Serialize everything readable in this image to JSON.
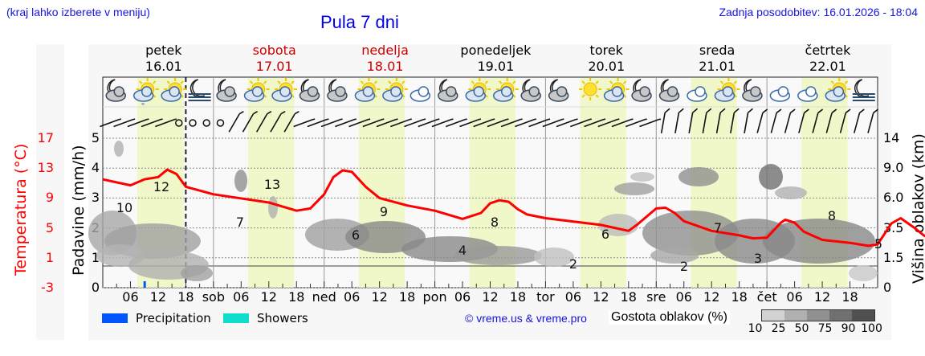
{
  "header": {
    "location_hint": "(kraj lahko izberete v meniju)",
    "title": "Pula 7 dni",
    "last_update": "Zadnja posodobitev: 16.01.2026 - 18:04"
  },
  "days": [
    {
      "name": "petek",
      "date": "16.01",
      "weekend": false
    },
    {
      "name": "sobota",
      "date": "17.01",
      "weekend": true
    },
    {
      "name": "nedelja",
      "date": "18.01",
      "weekend": true
    },
    {
      "name": "ponedeljek",
      "date": "19.01",
      "weekend": false
    },
    {
      "name": "torek",
      "date": "20.01",
      "weekend": false
    },
    {
      "name": "sreda",
      "date": "21.01",
      "weekend": false
    },
    {
      "name": "četrtek",
      "date": "22.01",
      "weekend": false
    }
  ],
  "axes": {
    "left_temp_title": "Temperatura (°C)",
    "left_precip_title": "Padavine (mm/h)",
    "right_title": "Višina oblakov (km)",
    "temp_ticks": [
      "17",
      "13",
      "9",
      "5",
      "1",
      "-3"
    ],
    "precip_ticks": [
      "5",
      "4",
      "3",
      "2",
      "1",
      "0"
    ],
    "cloud_height_ticks": [
      "14",
      "9.0",
      "6.0",
      "3.5",
      "1.5",
      "0"
    ],
    "x_ticks": [
      "06",
      "12",
      "18",
      "sob",
      "06",
      "12",
      "18",
      "ned",
      "06",
      "12",
      "18",
      "pon",
      "06",
      "12",
      "18",
      "tor",
      "06",
      "12",
      "18",
      "sre",
      "06",
      "12",
      "18",
      "čet",
      "06",
      "12",
      "18"
    ]
  },
  "legend": {
    "precipitation": "Precipitation",
    "showers": "Showers",
    "precipitation_color": "#0055ff",
    "showers_color": "#11ddcc",
    "copyright": "© vreme.us & vreme.pro",
    "cloud_density_label": "Gostota oblakov (%)",
    "cloud_density_scale": [
      "10",
      "25",
      "50",
      "75",
      "90",
      "100"
    ],
    "cloud_density_colors": [
      "#d2d2d2",
      "#b0b0b0",
      "#909090",
      "#707070",
      "#505050"
    ]
  },
  "icons": [
    "moon-cloud",
    "sun-cloud-rain",
    "sun-cloud",
    "moon-fog",
    "moon-cloud",
    "sun-cloud",
    "sun-cloud",
    "moon-cloud",
    "moon-cloud",
    "sun-cloud",
    "sun-cloud",
    "cloudy",
    "moon-cloud",
    "sun-cloud",
    "sun-cloud",
    "moon-cloud",
    "moon-cloud",
    "sun",
    "sun-cloud",
    "moon-cloud",
    "moon-cloud",
    "cloudy",
    "sun-cloud",
    "moon-cloud",
    "cloudy",
    "cloudy",
    "sun-cloud",
    "moon-fog"
  ],
  "chart_data": {
    "type": "line",
    "title": "Pula 7 dni",
    "xlabel": "",
    "ylabel": "Temperatura (°C)",
    "ylim": [
      -3,
      17
    ],
    "secondary_axes": {
      "precipitation_mm_h": [
        0,
        5
      ],
      "cloud_height_km": [
        "0",
        "1.5",
        "3.5",
        "6.0",
        "9.0",
        "14"
      ]
    },
    "grid": true,
    "legend_position": "bottom",
    "series": [
      {
        "name": "Temperatura (°C)",
        "color": "#ff0000",
        "labeled_extremes": [
          {
            "time": "16.01 03",
            "value": 10
          },
          {
            "time": "16.01 13",
            "value": 12
          },
          {
            "time": "17.01 06",
            "value": 7
          },
          {
            "time": "17.01 13",
            "value": 13
          },
          {
            "time": "18.01 06",
            "value": 6
          },
          {
            "time": "18.01 13",
            "value": 9
          },
          {
            "time": "19.01 05",
            "value": 4
          },
          {
            "time": "19.01 13",
            "value": 8
          },
          {
            "time": "20.01 05",
            "value": 2
          },
          {
            "time": "20.01 13",
            "value": 6
          },
          {
            "time": "21.01 06",
            "value": 2
          },
          {
            "time": "21.01 13",
            "value": 7
          },
          {
            "time": "22.01 03",
            "value": 3
          },
          {
            "time": "22.01 14",
            "value": 8
          },
          {
            "time": "22.01 24",
            "value": 5
          }
        ],
        "hourly_points": [
          [
            0,
            11.5
          ],
          [
            6,
            10.7
          ],
          [
            9,
            11.5
          ],
          [
            12,
            11.8
          ],
          [
            14,
            12.8
          ],
          [
            16,
            12.2
          ],
          [
            18,
            10.5
          ],
          [
            24,
            9.5
          ],
          [
            36,
            8.4
          ],
          [
            42,
            7.3
          ],
          [
            45,
            7.6
          ],
          [
            48,
            9.5
          ],
          [
            50,
            11.8
          ],
          [
            52,
            12.7
          ],
          [
            54,
            12.5
          ],
          [
            57,
            10.5
          ],
          [
            60,
            9
          ],
          [
            66,
            8.0
          ],
          [
            72,
            7.3
          ],
          [
            78,
            6.2
          ],
          [
            82,
            7.0
          ],
          [
            84,
            8.3
          ],
          [
            86,
            8.7
          ],
          [
            88,
            8.5
          ],
          [
            90,
            7.5
          ],
          [
            92,
            6.8
          ],
          [
            96,
            6.3
          ],
          [
            108,
            5.4
          ],
          [
            114,
            4.6
          ],
          [
            116,
            5.5
          ],
          [
            120,
            7.6
          ],
          [
            122,
            7.7
          ],
          [
            124,
            7.0
          ],
          [
            126,
            5.9
          ],
          [
            132,
            4.6
          ],
          [
            138,
            4.0
          ],
          [
            141,
            3.6
          ],
          [
            144,
            3.7
          ],
          [
            147,
            5.7
          ],
          [
            148,
            6.1
          ],
          [
            150,
            5.7
          ],
          [
            152,
            4.5
          ],
          [
            156,
            3.4
          ],
          [
            162,
            3.0
          ],
          [
            166,
            2.6
          ],
          [
            168,
            2.8
          ],
          [
            171,
            5.6
          ],
          [
            173,
            6.3
          ],
          [
            176,
            5.0
          ],
          [
            178,
            4.0
          ],
          [
            180,
            3.4
          ],
          [
            186,
            3.5
          ],
          [
            190,
            4.0
          ],
          [
            192,
            4.2
          ],
          [
            195,
            6.6
          ],
          [
            197,
            7.4
          ],
          [
            200,
            6.6
          ],
          [
            204,
            5.2
          ],
          [
            208,
            4.8
          ]
        ]
      },
      {
        "name": "Precipitation",
        "color": "#0055ff",
        "events": [
          {
            "time": "16.01 09",
            "value_mm_h": 0.1
          }
        ]
      }
    ],
    "daylight_bands": [
      "07-17 each day"
    ],
    "now_marker": "16.01 18:00 (dashed line)"
  }
}
